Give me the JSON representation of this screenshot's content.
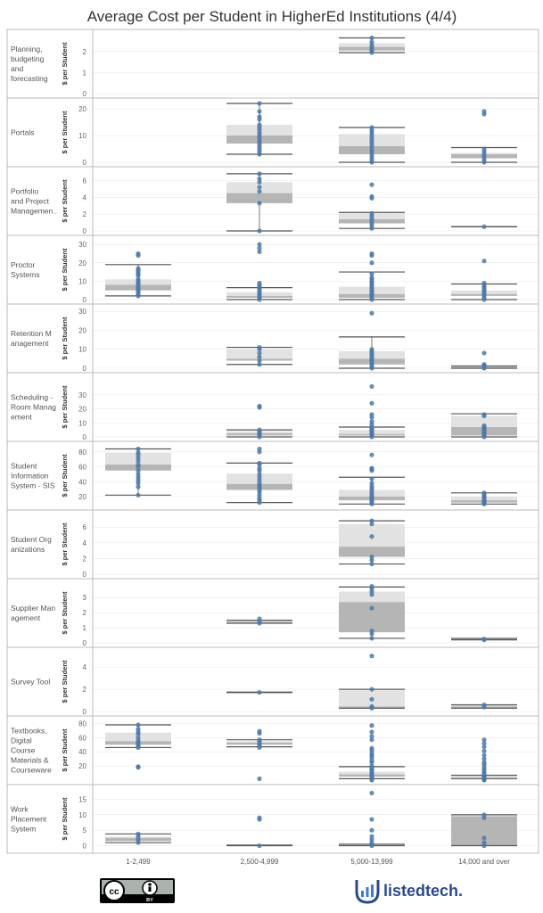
{
  "chart_data": {
    "type": "boxplot",
    "title": "Average Cost per Student in HigherEd Institutions (4/4)",
    "ylabel": "$ per Student",
    "categories": [
      "1-2,499",
      "2,500-4,999",
      "5,000-13,999",
      "14,000 and over"
    ],
    "colors": {
      "point": "#4e79a7",
      "box_upper": "#e2e2e2",
      "box_lower": "#b5b5b5",
      "whisker": "#555555",
      "grid": "#cccccc"
    },
    "rows": [
      {
        "label": "Planning, budgeting and forecasting",
        "ylim": [
          0,
          2.8
        ],
        "ticks": [
          0,
          1,
          2
        ],
        "groups": [
          null,
          null,
          {
            "wlo": 1.95,
            "q1": 2.05,
            "med": 2.22,
            "q3": 2.4,
            "whi": 2.65,
            "points": [
              1.95,
              2.05,
              2.1,
              2.2,
              2.3,
              2.45,
              2.65
            ]
          },
          null
        ]
      },
      {
        "label": "Portals",
        "ylim": [
          0,
          22
        ],
        "ticks": [
          0,
          10,
          20
        ],
        "groups": [
          null,
          {
            "wlo": 3,
            "q1": 7,
            "med": 10,
            "q3": 14,
            "whi": 22,
            "points": [
              3,
              4,
              5,
              6,
              7,
              8,
              9,
              10,
              11,
              12,
              13,
              14,
              16,
              17,
              19,
              22
            ]
          },
          {
            "wlo": 0,
            "q1": 3,
            "med": 6,
            "q3": 10.5,
            "whi": 13,
            "points": [
              0,
              1,
              2,
              3,
              4,
              5,
              6,
              7,
              8,
              9,
              10,
              11,
              12,
              13
            ]
          },
          {
            "wlo": 0,
            "q1": 1.5,
            "med": 3,
            "q3": 3.5,
            "whi": 5.5,
            "points": [
              0,
              1,
              2,
              3,
              4,
              5,
              18,
              19
            ]
          }
        ]
      },
      {
        "label": "Portfolio and Project Managemen..",
        "ylim": [
          0,
          7
        ],
        "ticks": [
          0,
          2,
          4,
          6
        ],
        "groups": [
          null,
          {
            "wlo": 0,
            "q1": 3.3,
            "med": 4.5,
            "q3": 5.8,
            "whi": 6.8,
            "points": [
              0,
              3.3,
              4.7,
              5.2,
              5.8,
              6.2,
              6.8
            ]
          },
          {
            "wlo": 0.3,
            "q1": 0.9,
            "med": 1.4,
            "q3": 2.1,
            "whi": 2.2,
            "points": [
              0.3,
              0.6,
              0.9,
              1.2,
              1.5,
              1.8,
              2.1,
              3.9,
              4.1,
              5.5
            ]
          },
          {
            "wlo": 0.5,
            "q1": 0.5,
            "med": 0.5,
            "q3": 0.5,
            "whi": 0.5,
            "points": [
              0.5
            ]
          }
        ]
      },
      {
        "label": "Proctor Systems",
        "ylim": [
          0,
          32
        ],
        "ticks": [
          0,
          10,
          20,
          30
        ],
        "groups": [
          {
            "wlo": 2,
            "q1": 5,
            "med": 8,
            "q3": 11,
            "whi": 19,
            "points": [
              2,
              3,
              4,
              5,
              6,
              7,
              8,
              9,
              10,
              11,
              13,
              14,
              15,
              16,
              17,
              24,
              25
            ]
          },
          {
            "wlo": 0,
            "q1": 1,
            "med": 2,
            "q3": 4,
            "whi": 6.5,
            "points": [
              0,
              1,
              2,
              3,
              4,
              5,
              6,
              7,
              8,
              9,
              26,
              28,
              30
            ]
          },
          {
            "wlo": 0,
            "q1": 1,
            "med": 3,
            "q3": 7,
            "whi": 15,
            "points": [
              0,
              1,
              2,
              3,
              4,
              5,
              6,
              7,
              8,
              9,
              10,
              11,
              12,
              14,
              20,
              24,
              25
            ]
          },
          {
            "wlo": 0,
            "q1": 2,
            "med": 3,
            "q3": 5,
            "whi": 8.5,
            "points": [
              0,
              1,
              2,
              3,
              4,
              5,
              6,
              7,
              8,
              9,
              21
            ]
          }
        ]
      },
      {
        "label": "Retention M anagement",
        "ylim": [
          0,
          31
        ],
        "ticks": [
          0,
          10,
          20,
          30
        ],
        "groups": [
          null,
          {
            "wlo": 2,
            "q1": 4,
            "med": 5,
            "q3": 10,
            "whi": 11,
            "points": [
              2,
              4,
              6,
              8,
              10,
              11
            ]
          },
          {
            "wlo": 0,
            "q1": 2,
            "med": 5,
            "q3": 9,
            "whi": 16.5,
            "points": [
              0,
              1,
              2,
              3,
              4,
              5,
              6,
              7,
              8,
              9,
              10,
              29
            ]
          },
          {
            "wlo": 0,
            "q1": 0.3,
            "med": 0.8,
            "q3": 1,
            "whi": 1.2,
            "points": [
              0,
              0.5,
              1,
              1.5,
              2,
              8
            ]
          }
        ]
      },
      {
        "label": "Scheduling - Room Manag ement",
        "ylim": [
          0,
          42
        ],
        "ticks": [
          0,
          10,
          20,
          30
        ],
        "groups": [
          null,
          {
            "wlo": 0,
            "q1": 1,
            "med": 2.5,
            "q3": 4,
            "whi": 5,
            "points": [
              0,
              1,
              2,
              3,
              4,
              5,
              21,
              22
            ]
          },
          {
            "wlo": 0,
            "q1": 1,
            "med": 2,
            "q3": 5,
            "whi": 7,
            "points": [
              0,
              1,
              2,
              3,
              4,
              5,
              6,
              7,
              9,
              11,
              14,
              16,
              24,
              36
            ]
          },
          {
            "wlo": 0,
            "q1": 1,
            "med": 7,
            "q3": 15,
            "whi": 16.5,
            "points": [
              0,
              1,
              2,
              3,
              4,
              5,
              6,
              7,
              8,
              15,
              16
            ]
          }
        ]
      },
      {
        "label": "Student Information System - SIS",
        "ylim": [
          8,
          87
        ],
        "ticks": [
          20,
          40,
          60,
          80
        ],
        "groups": [
          {
            "wlo": 22,
            "q1": 55,
            "med": 63,
            "q3": 79,
            "whi": 84,
            "points": [
              22,
              33,
              38,
              42,
              46,
              50,
              55,
              60,
              63,
              68,
              72,
              76,
              79,
              84
            ]
          },
          {
            "wlo": 12,
            "q1": 29,
            "med": 37,
            "q3": 51,
            "whi": 65,
            "points": [
              12,
              15,
              18,
              22,
              26,
              29,
              32,
              35,
              38,
              42,
              46,
              50,
              55,
              58,
              63,
              65,
              80,
              84
            ]
          },
          {
            "wlo": 10,
            "q1": 15,
            "med": 20,
            "q3": 29,
            "whi": 46,
            "points": [
              10,
              12,
              14,
              16,
              18,
              20,
              22,
              25,
              28,
              31,
              34,
              38,
              44,
              55,
              57,
              58,
              76
            ]
          },
          {
            "wlo": 10,
            "q1": 12,
            "med": 15,
            "q3": 20,
            "whi": 25,
            "points": [
              10,
              11,
              12,
              13,
              14,
              15,
              16,
              18,
              20,
              22,
              24,
              25
            ]
          }
        ]
      },
      {
        "label": "Student Org anizations",
        "ylim": [
          0,
          7.5
        ],
        "ticks": [
          0,
          2,
          4,
          6
        ],
        "groups": [
          null,
          null,
          {
            "wlo": 1.3,
            "q1": 2.2,
            "med": 3.5,
            "q3": 6.4,
            "whi": 6.8,
            "points": [
              1.3,
              1.8,
              2.2,
              4.8,
              6.4,
              6.8
            ]
          },
          null
        ]
      },
      {
        "label": "Supplier Man agement",
        "ylim": [
          0,
          3.9
        ],
        "ticks": [
          0,
          1,
          2,
          3
        ],
        "groups": [
          null,
          {
            "wlo": 1.3,
            "q1": 1.35,
            "med": 1.4,
            "q3": 1.45,
            "whi": 1.5,
            "points": [
              1.3,
              1.4,
              1.6
            ]
          },
          {
            "wlo": 0.3,
            "q1": 0.7,
            "med": 2.7,
            "q3": 3.4,
            "whi": 3.7,
            "points": [
              0.3,
              0.6,
              0.8,
              2.3,
              3.2,
              3.4,
              3.6,
              3.75
            ]
          },
          {
            "wlo": 0.2,
            "q1": 0.2,
            "med": 0.25,
            "q3": 0.3,
            "whi": 0.3,
            "points": [
              0.2,
              0.25
            ]
          }
        ]
      },
      {
        "label": "Survey Tool",
        "ylim": [
          0,
          5.3
        ],
        "ticks": [
          0,
          2,
          4
        ],
        "groups": [
          null,
          {
            "wlo": 1.7,
            "q1": 1.7,
            "med": 1.72,
            "q3": 1.74,
            "whi": 1.75,
            "points": [
              1.72
            ]
          },
          {
            "wlo": 0.3,
            "q1": 0.35,
            "med": 0.45,
            "q3": 1.9,
            "whi": 2.0,
            "points": [
              0.3,
              0.45,
              1.1,
              2.0,
              5.0
            ]
          },
          {
            "wlo": 0.3,
            "q1": 0.35,
            "med": 0.45,
            "q3": 0.55,
            "whi": 0.6,
            "points": [
              0.4,
              0.6
            ]
          }
        ]
      },
      {
        "label": "Textbooks, Digital Course Materials & Courseware",
        "ylim": [
          0,
          83
        ],
        "ticks": [
          20,
          40,
          60,
          80
        ],
        "groups": [
          {
            "wlo": 46,
            "q1": 50,
            "med": 55,
            "q3": 67,
            "whi": 78,
            "points": [
              18,
              19,
              46,
              48,
              50,
              53,
              56,
              60,
              65,
              68,
              72,
              78
            ]
          },
          {
            "wlo": 47,
            "q1": 50,
            "med": 53,
            "q3": 55,
            "whi": 57,
            "points": [
              2,
              46,
              49,
              52,
              55,
              57,
              66,
              69
            ]
          },
          {
            "wlo": 2,
            "q1": 5,
            "med": 8,
            "q3": 12,
            "whi": 19,
            "points": [
              0,
              2,
              4,
              6,
              8,
              10,
              12,
              14,
              16,
              18,
              20,
              25,
              28,
              32,
              35,
              38,
              42,
              45,
              57,
              62,
              68,
              77
            ]
          },
          {
            "wlo": 2,
            "q1": 4,
            "med": 5,
            "q3": 6,
            "whi": 7,
            "points": [
              0,
              1,
              2,
              3,
              4,
              5,
              6,
              7,
              9,
              12,
              15,
              18,
              22,
              25,
              30,
              35,
              41,
              47,
              52,
              57
            ]
          }
        ]
      },
      {
        "label": "Work Placement System",
        "ylim": [
          -1,
          18
        ],
        "ticks": [
          0,
          5,
          10,
          15
        ],
        "groups": [
          {
            "wlo": 1,
            "q1": 1.5,
            "med": 2.5,
            "q3": 3,
            "whi": 3.8,
            "points": [
              1,
              2,
              3,
              3.8
            ]
          },
          {
            "wlo": 0,
            "q1": 0.05,
            "med": 0.1,
            "q3": 0.15,
            "whi": 0.2,
            "points": [
              0,
              8.5,
              9
            ]
          },
          {
            "wlo": 0,
            "q1": 0.05,
            "med": 0.1,
            "q3": 0.4,
            "whi": 0.5,
            "points": [
              0,
              0.5,
              1,
              2,
              3,
              5,
              8.5,
              17
            ]
          },
          {
            "wlo": 0,
            "q1": 0.05,
            "med": 9.5,
            "q3": 10,
            "whi": 10,
            "points": [
              0,
              1,
              2.5,
              9,
              10
            ]
          }
        ]
      }
    ]
  },
  "footer": {
    "license_cc": "cc",
    "license_by": "BY",
    "brand": "listedtech."
  }
}
